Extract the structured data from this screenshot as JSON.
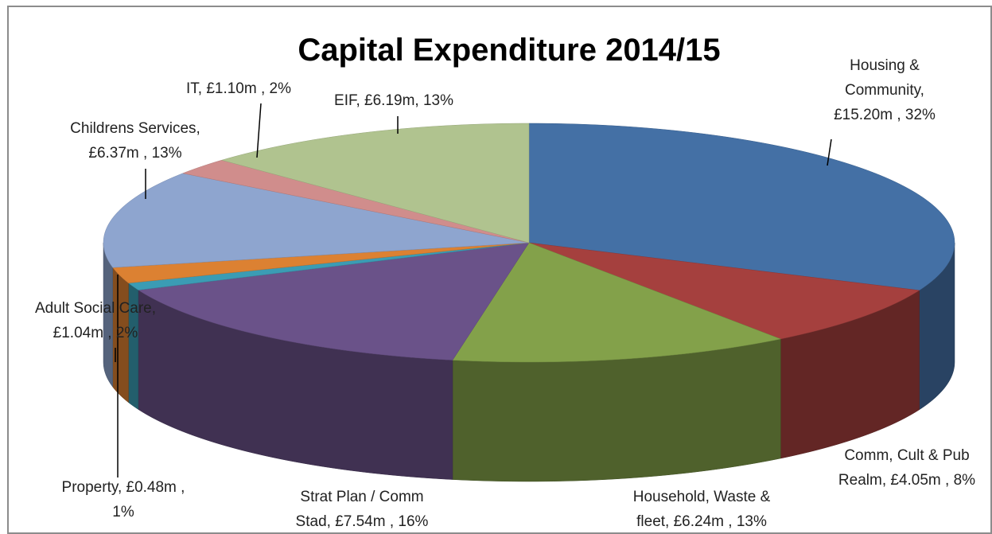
{
  "chart_data": {
    "type": "pie3d",
    "title": "Capital Expenditure 2014/15",
    "values": [
      15.2,
      4.05,
      6.24,
      7.54,
      0.48,
      1.04,
      6.37,
      1.1,
      6.19
    ],
    "value_labels": [
      [
        "Housing &",
        "Community,",
        "£15.20m , 32%"
      ],
      [
        "Comm, Cult & Pub",
        "Realm,  £4.05m , 8%"
      ],
      [
        "Household, Waste &",
        "fleet,  £6.24m , 13%"
      ],
      [
        "Strat Plan / Comm",
        "Stad,  £7.54m , 16%"
      ],
      [
        "Property,  £0.48m ,",
        "1%"
      ],
      [
        "Adult Social Care,",
        "£1.04m , 2%"
      ],
      [
        "Childrens Services,",
        "£6.37m , 13%"
      ],
      [
        "IT,  £1.10m , 2%"
      ],
      [
        "EIF, £6.19m, 13%"
      ]
    ],
    "colors": [
      "#4470a5",
      "#a5403e",
      "#83a14a",
      "#6a5289",
      "#3b9cb4",
      "#dc8132",
      "#8ea5cf",
      "#d08d8c",
      "#b0c38f"
    ]
  }
}
